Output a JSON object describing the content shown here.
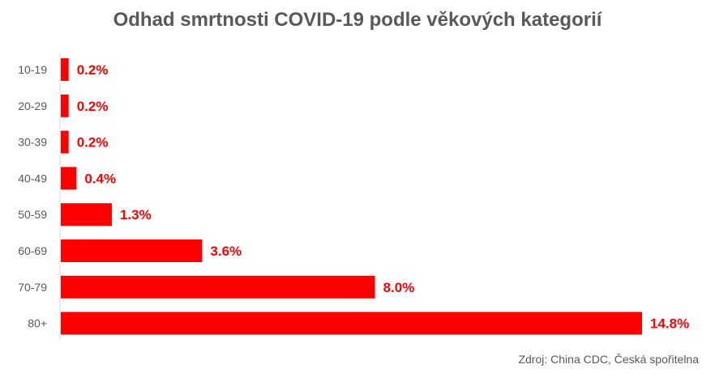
{
  "chart_data": {
    "type": "bar",
    "orientation": "horizontal",
    "title": "Odhad smrtnosti COVID-19 podle věkových kategorií",
    "categories": [
      "10-19",
      "20-29",
      "30-39",
      "40-49",
      "50-59",
      "60-69",
      "70-79",
      "80+"
    ],
    "values": [
      0.2,
      0.2,
      0.2,
      0.4,
      1.3,
      3.6,
      8.0,
      14.8
    ],
    "data_labels": [
      "0.2%",
      "0.2%",
      "0.2%",
      "0.4%",
      "1.3%",
      "3.6%",
      "8.0%",
      "14.8%"
    ],
    "unit": "%",
    "xlim": [
      0,
      14.8
    ],
    "grid": false,
    "legend": "none",
    "bar_color": "#FF0000",
    "label_color": "#FF0000",
    "source": "Zdroj: China CDC, Česká spořitelna"
  }
}
